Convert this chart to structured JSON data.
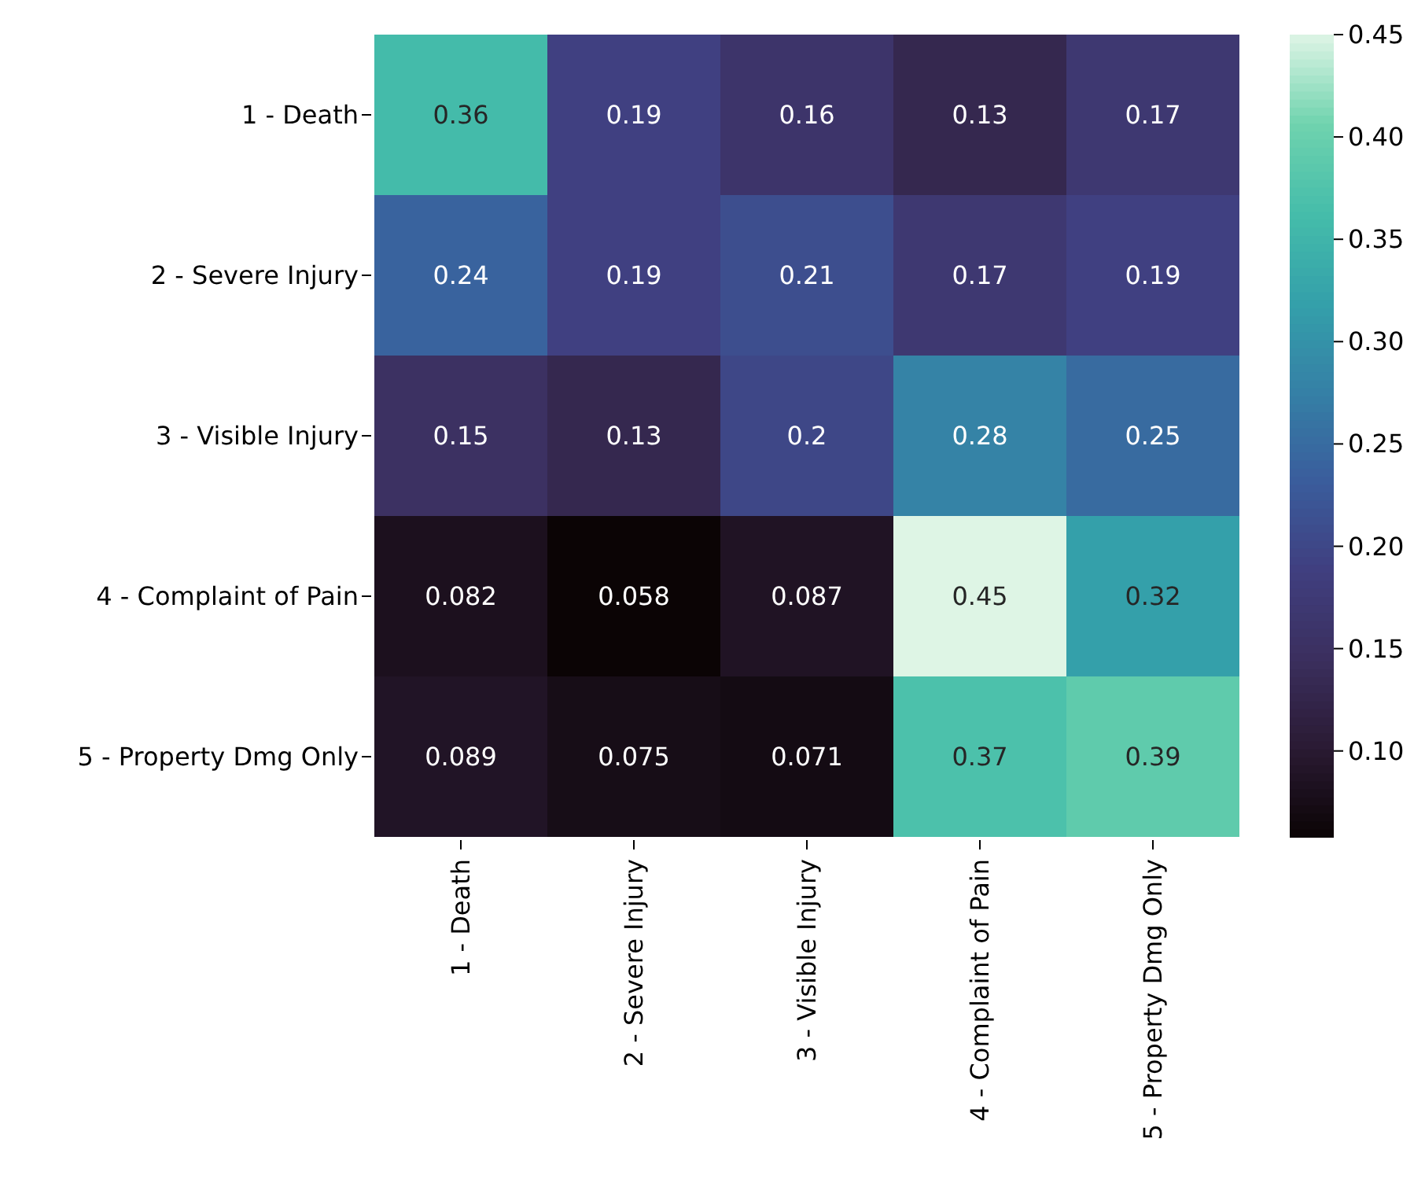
{
  "chart_data": {
    "type": "heatmap",
    "categories": [
      "1 - Death",
      "2 - Severe Injury",
      "3 - Visible Injury",
      "4 - Complaint of Pain",
      "5 - Property Dmg Only"
    ],
    "y_categories": [
      "1 - Death",
      "2 - Severe Injury",
      "3 - Visible Injury",
      "4 - Complaint of Pain",
      "5 - Property Dmg Only"
    ],
    "cells": [
      [
        0.36,
        0.19,
        0.16,
        0.13,
        0.17
      ],
      [
        0.24,
        0.19,
        0.21,
        0.17,
        0.19
      ],
      [
        0.15,
        0.13,
        0.2,
        0.28,
        0.25
      ],
      [
        0.082,
        0.058,
        0.087,
        0.45,
        0.32
      ],
      [
        0.089,
        0.075,
        0.071,
        0.37,
        0.39
      ]
    ],
    "data_labels": true,
    "clim": [
      0.058,
      0.45
    ],
    "cticks": [
      {
        "value": 0.1,
        "label": "0.10"
      },
      0.15,
      {
        "value": 0.2,
        "label": "0.20"
      },
      0.25,
      {
        "value": 0.3,
        "label": "0.30"
      },
      0.35,
      {
        "value": 0.4,
        "label": "0.40"
      },
      0.45
    ]
  }
}
